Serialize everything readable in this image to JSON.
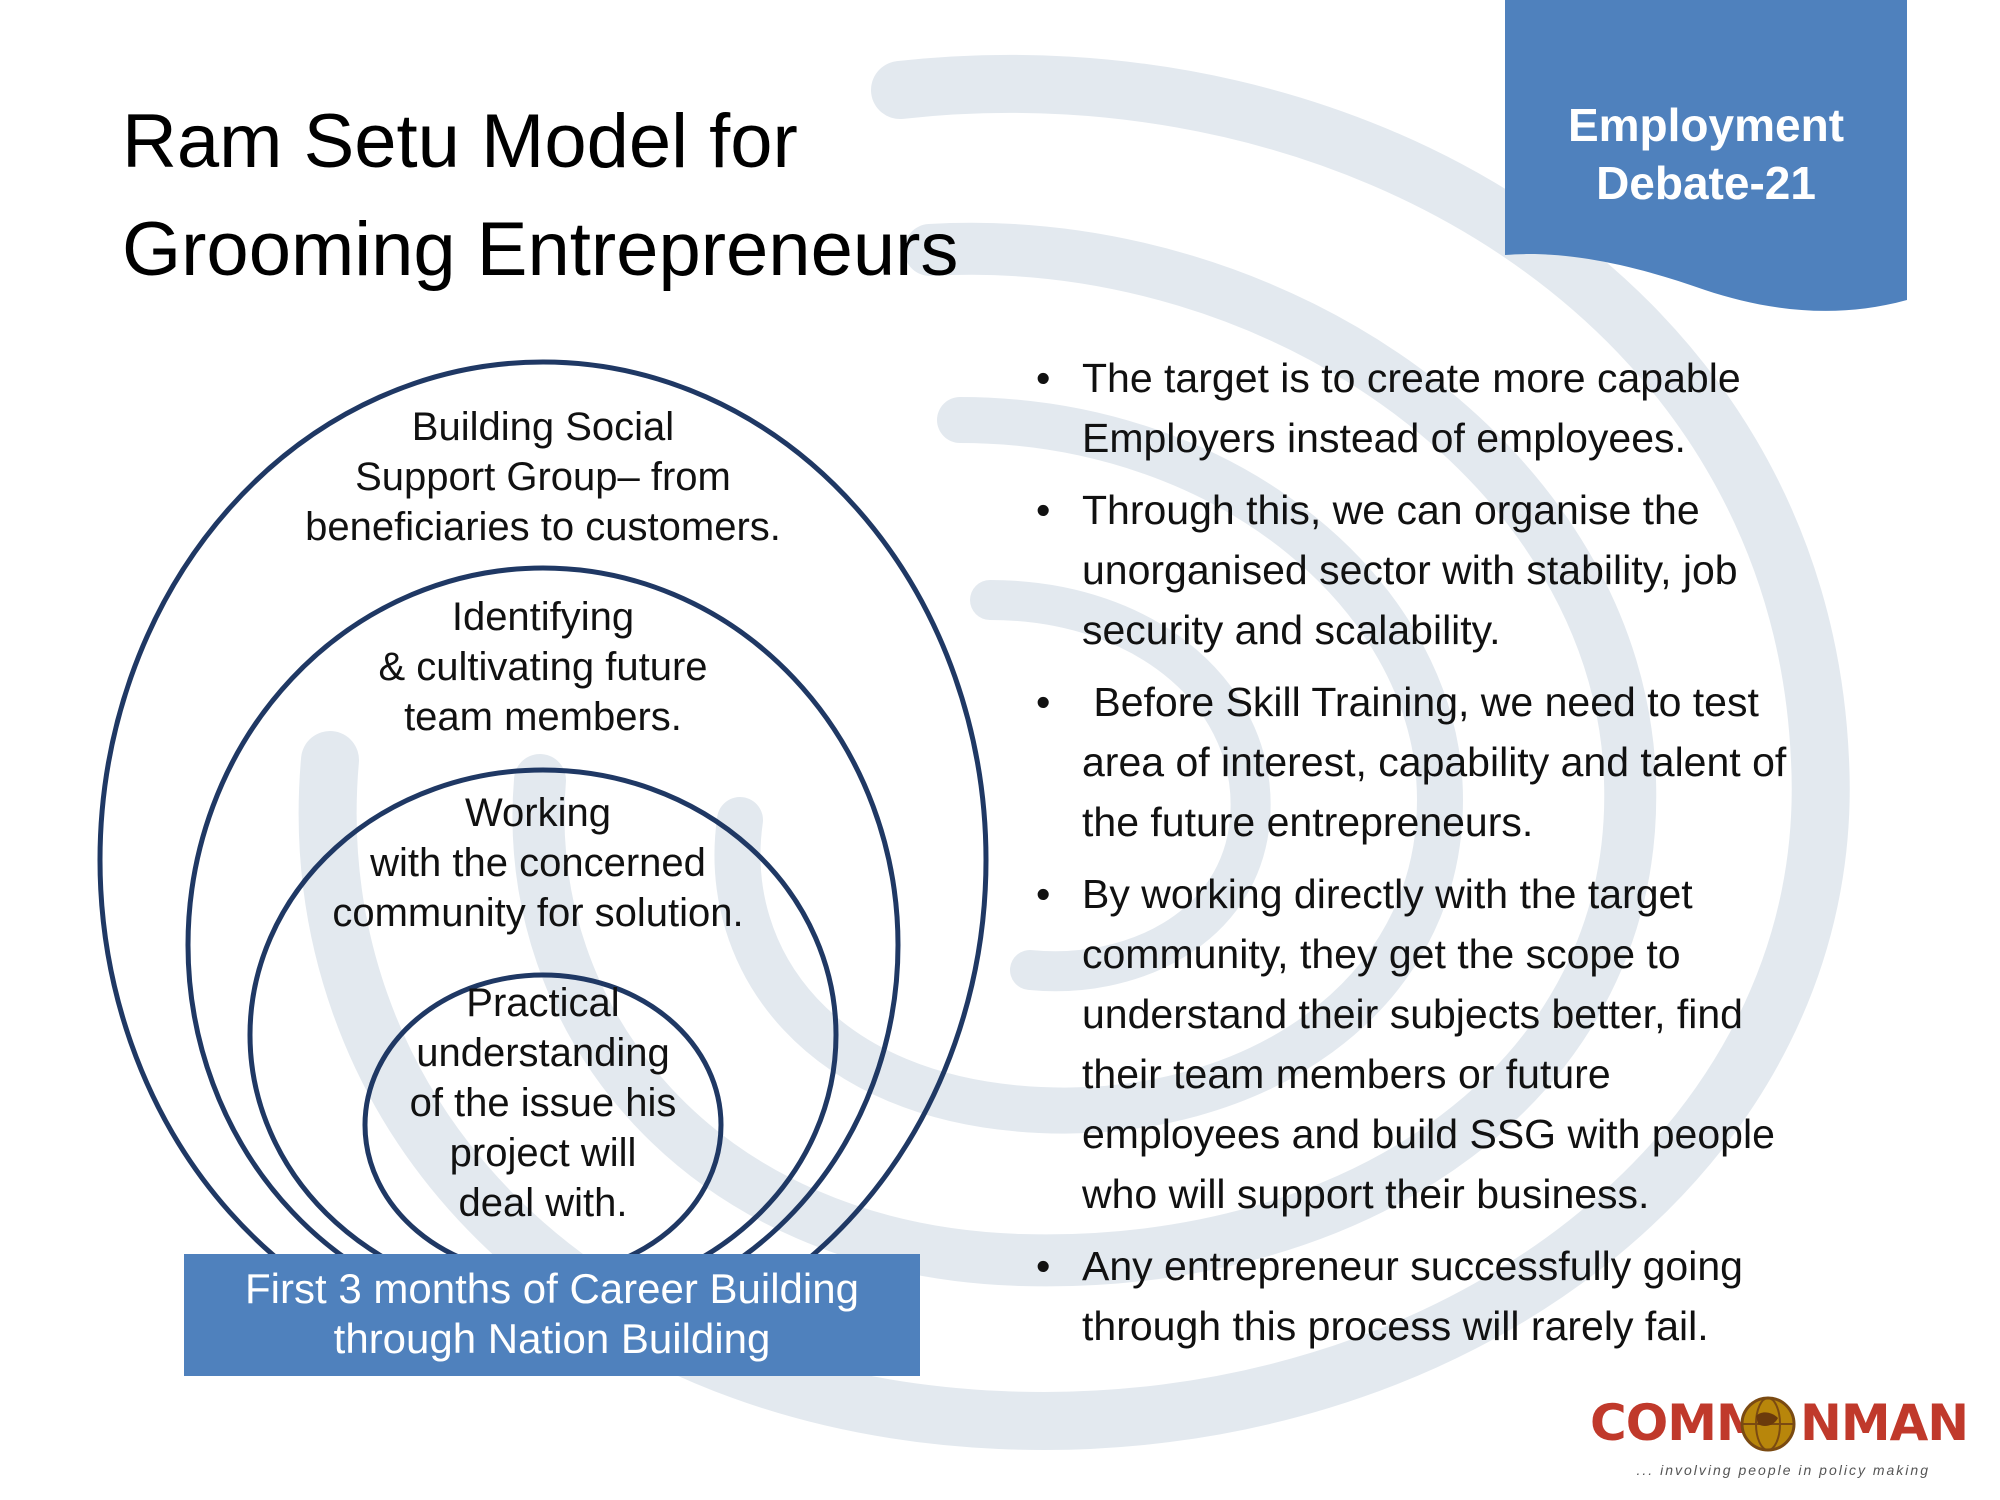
{
  "title": {
    "line1": "Ram Setu Model for",
    "line2": "Grooming Entrepreneurs"
  },
  "badge": {
    "line1": "Employment",
    "line2": "Debate-21",
    "color": "#4f81bd"
  },
  "diagram": {
    "rings": [
      {
        "lines": [
          "Building Social",
          "Support Group– from",
          "beneficiaries to customers."
        ]
      },
      {
        "lines": [
          "Identifying",
          "& cultivating future",
          "team members."
        ]
      },
      {
        "lines": [
          "Working",
          "with the concerned",
          "community for solution."
        ]
      },
      {
        "lines": [
          "Practical",
          "understanding",
          "of the issue his",
          "project will",
          "deal with."
        ]
      }
    ],
    "ring_color": "#1f3864",
    "footer": {
      "line1": "First 3 months of Career Building",
      "line2": "through Nation Building"
    }
  },
  "bullets": [
    {
      "lines": [
        "The target is to create more capable",
        "Employers instead of employees."
      ]
    },
    {
      "lines": [
        "Through this, we can organise the",
        "unorganised sector with stability, job",
        "security and scalability."
      ]
    },
    {
      "lines": [
        " Before Skill Training, we need to test",
        "area of interest, capability and talent of",
        "the future entrepreneurs."
      ]
    },
    {
      "lines": [
        "By working directly with the target",
        "community, they get the scope to",
        "understand their subjects better, find",
        "their team members or future",
        "employees and build SSG with people",
        "who will support their business."
      ]
    },
    {
      "lines": [
        "Any entrepreneur successfully going",
        "through this process will rarely fail."
      ]
    }
  ],
  "logo": {
    "left": "COMM",
    "right": "NMAN",
    "tagline": "... involving people in policy making",
    "icon": "globe-icon",
    "color": "#c0392b"
  }
}
